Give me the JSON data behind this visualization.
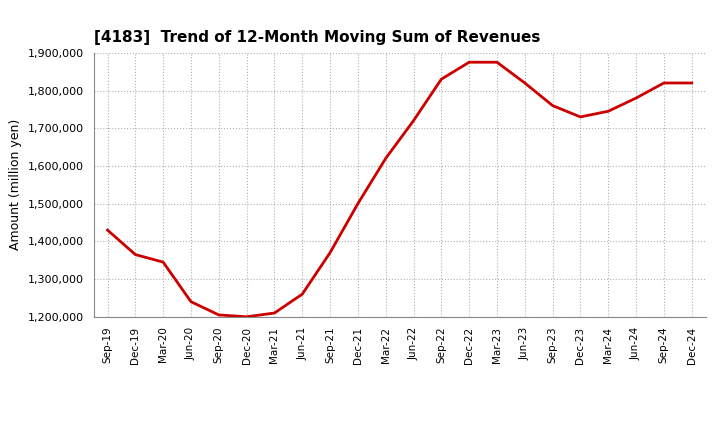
{
  "title": "[4183]  Trend of 12-Month Moving Sum of Revenues",
  "ylabel": "Amount (million yen)",
  "line_color": "#cc0000",
  "background_color": "#ffffff",
  "grid_color": "#b0b0b0",
  "ylim": [
    1200000,
    1900000
  ],
  "yticks": [
    1200000,
    1300000,
    1400000,
    1500000,
    1600000,
    1700000,
    1800000,
    1900000
  ],
  "x_labels": [
    "Sep-19",
    "Dec-19",
    "Mar-20",
    "Jun-20",
    "Sep-20",
    "Dec-20",
    "Mar-21",
    "Jun-21",
    "Sep-21",
    "Dec-21",
    "Mar-22",
    "Jun-22",
    "Sep-22",
    "Dec-22",
    "Mar-23",
    "Jun-23",
    "Sep-23",
    "Dec-23",
    "Mar-24",
    "Jun-24",
    "Sep-24",
    "Dec-24"
  ],
  "values": [
    1430000,
    1365000,
    1345000,
    1240000,
    1205000,
    1200000,
    1210000,
    1260000,
    1370000,
    1500000,
    1620000,
    1720000,
    1830000,
    1875000,
    1875000,
    1820000,
    1760000,
    1730000,
    1745000,
    1780000,
    1820000,
    1820000
  ]
}
